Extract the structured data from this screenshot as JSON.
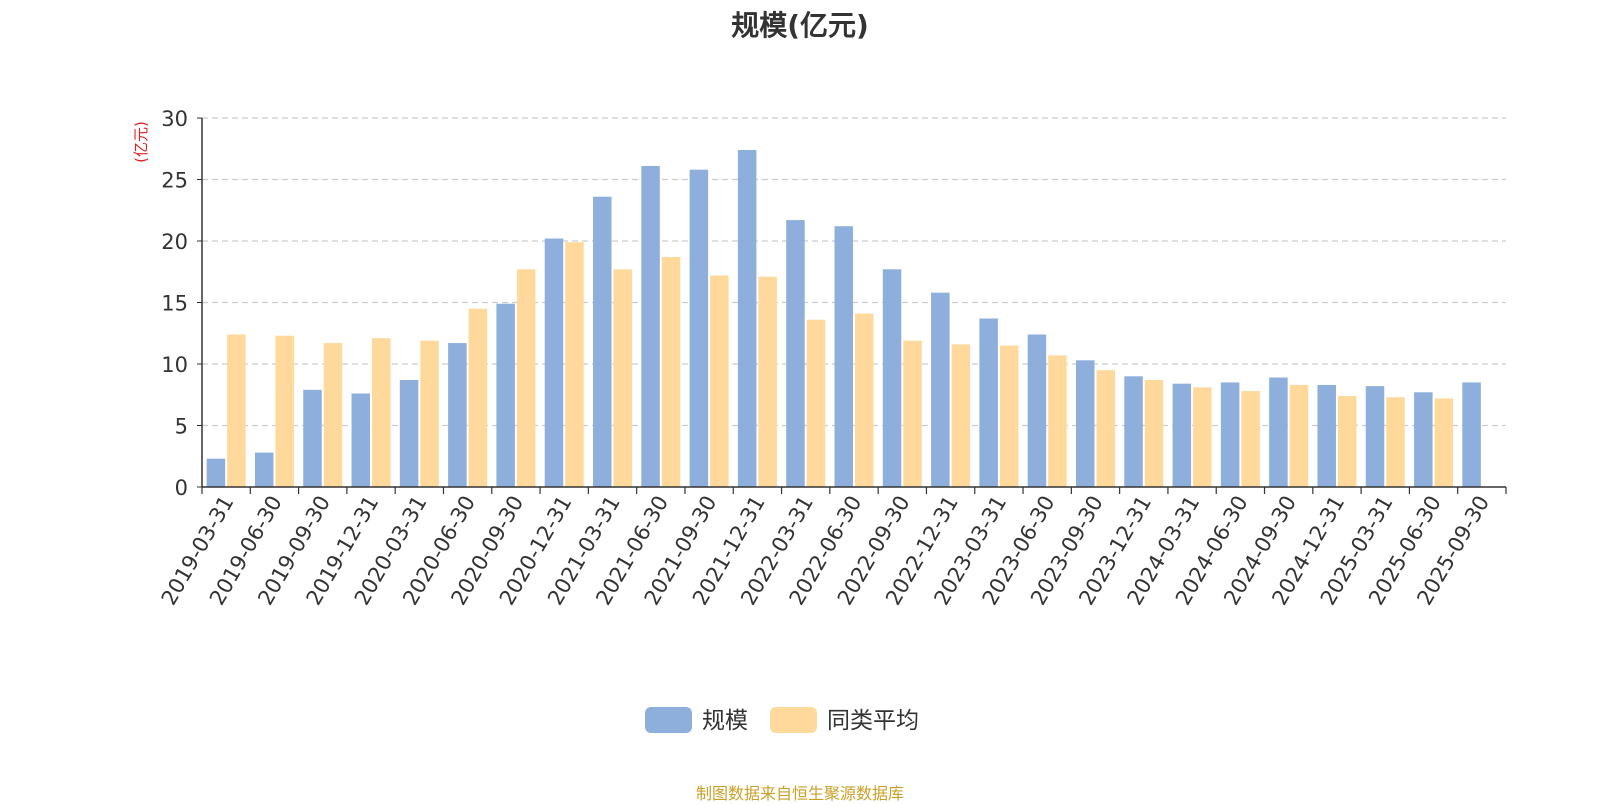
{
  "footer": "制图数据来自恒生聚源数据库",
  "colors": {
    "series_1": "#8eaedc",
    "series_2": "#fed99b",
    "unit_label": "#e02020"
  },
  "chart_data": {
    "type": "bar",
    "title": "规模(亿元)",
    "ylabel": "(亿元)",
    "xlabel": "",
    "ylim": [
      0,
      30
    ],
    "yticks": [
      0,
      5,
      10,
      15,
      20,
      25,
      30
    ],
    "grid": true,
    "legend_position": "bottom",
    "categories": [
      "2019-03-31",
      "2019-06-30",
      "2019-09-30",
      "2019-12-31",
      "2020-03-31",
      "2020-06-30",
      "2020-09-30",
      "2020-12-31",
      "2021-03-31",
      "2021-06-30",
      "2021-09-30",
      "2021-12-31",
      "2022-03-31",
      "2022-06-30",
      "2022-09-30",
      "2022-12-31",
      "2023-03-31",
      "2023-06-30",
      "2023-09-30",
      "2023-12-31",
      "2024-03-31",
      "2024-06-30",
      "2024-09-30",
      "2024-12-31",
      "2025-03-31",
      "2025-06-30",
      "2025-09-30"
    ],
    "series": [
      {
        "name": "规模",
        "values": [
          2.3,
          2.8,
          7.9,
          7.6,
          8.7,
          11.7,
          14.9,
          20.2,
          23.6,
          26.1,
          25.8,
          27.4,
          21.7,
          21.2,
          17.7,
          15.8,
          13.7,
          12.4,
          10.3,
          9.0,
          8.4,
          8.5,
          8.9,
          8.3,
          8.2,
          7.7,
          8.5
        ]
      },
      {
        "name": "同类平均",
        "values": [
          12.4,
          12.3,
          11.7,
          12.1,
          11.9,
          14.5,
          17.7,
          19.9,
          17.7,
          18.7,
          17.2,
          17.1,
          13.6,
          14.1,
          11.9,
          11.6,
          11.5,
          10.7,
          9.5,
          8.7,
          8.1,
          7.8,
          8.3,
          7.4,
          7.3,
          7.2,
          null
        ]
      }
    ]
  }
}
